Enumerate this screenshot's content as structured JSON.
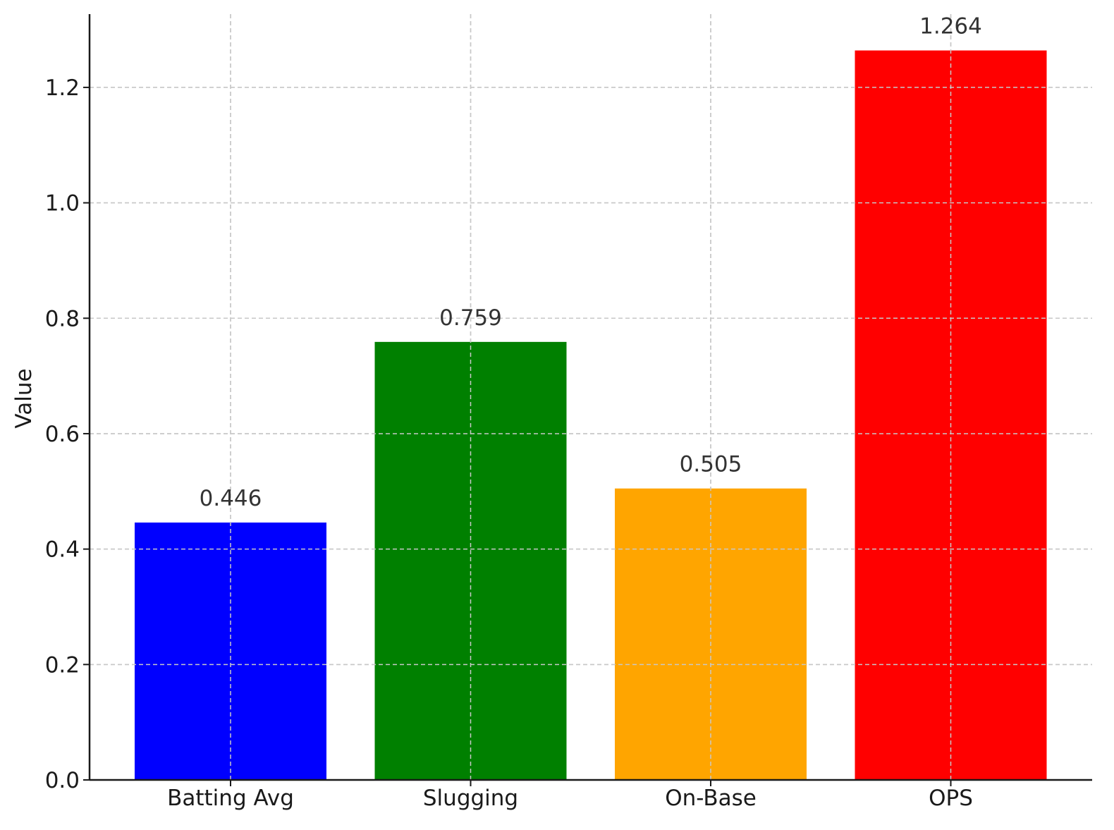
{
  "chart_data": {
    "type": "bar",
    "title": "",
    "xlabel": "",
    "ylabel": "Value",
    "categories": [
      "Batting Avg",
      "Slugging",
      "On-Base",
      "OPS"
    ],
    "values": [
      0.446,
      0.759,
      0.505,
      1.264
    ],
    "value_labels": [
      "0.446",
      "0.759",
      "0.505",
      "1.264"
    ],
    "colors": [
      "#0000ff",
      "#008000",
      "#ffa500",
      "#ff0000"
    ],
    "ylim": [
      0,
      1.327
    ],
    "yticks": [
      0.0,
      0.2,
      0.4,
      0.6,
      0.8,
      1.0,
      1.2
    ],
    "ytick_labels": [
      "0.0",
      "0.2",
      "0.4",
      "0.6",
      "0.8",
      "1.0",
      "1.2"
    ],
    "grid": true,
    "legend": false
  }
}
